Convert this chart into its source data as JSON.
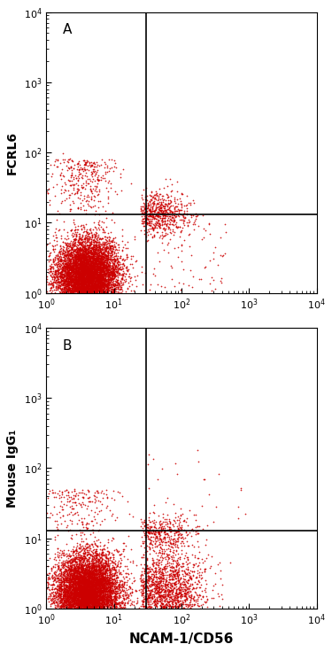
{
  "panel_A": {
    "label": "A",
    "ylabel": "FCRL6",
    "gate_x": 30,
    "gate_y": 13
  },
  "panel_B": {
    "label": "B",
    "ylabel": "Mouse IgG₁",
    "gate_x": 30,
    "gate_y": 13
  },
  "xlabel": "NCAM-1/CD56",
  "xlim": [
    1,
    10000
  ],
  "ylim": [
    1,
    10000
  ],
  "bg_color": "#ffffff",
  "dot_color_main": "#cc0000",
  "dot_color_dark": "#800000",
  "dot_size": 1.5,
  "line_color": "#000000",
  "line_width": 1.2,
  "tick_fontsize": 8,
  "xlabel_fontsize": 11,
  "ylabel_fontsize": 10
}
